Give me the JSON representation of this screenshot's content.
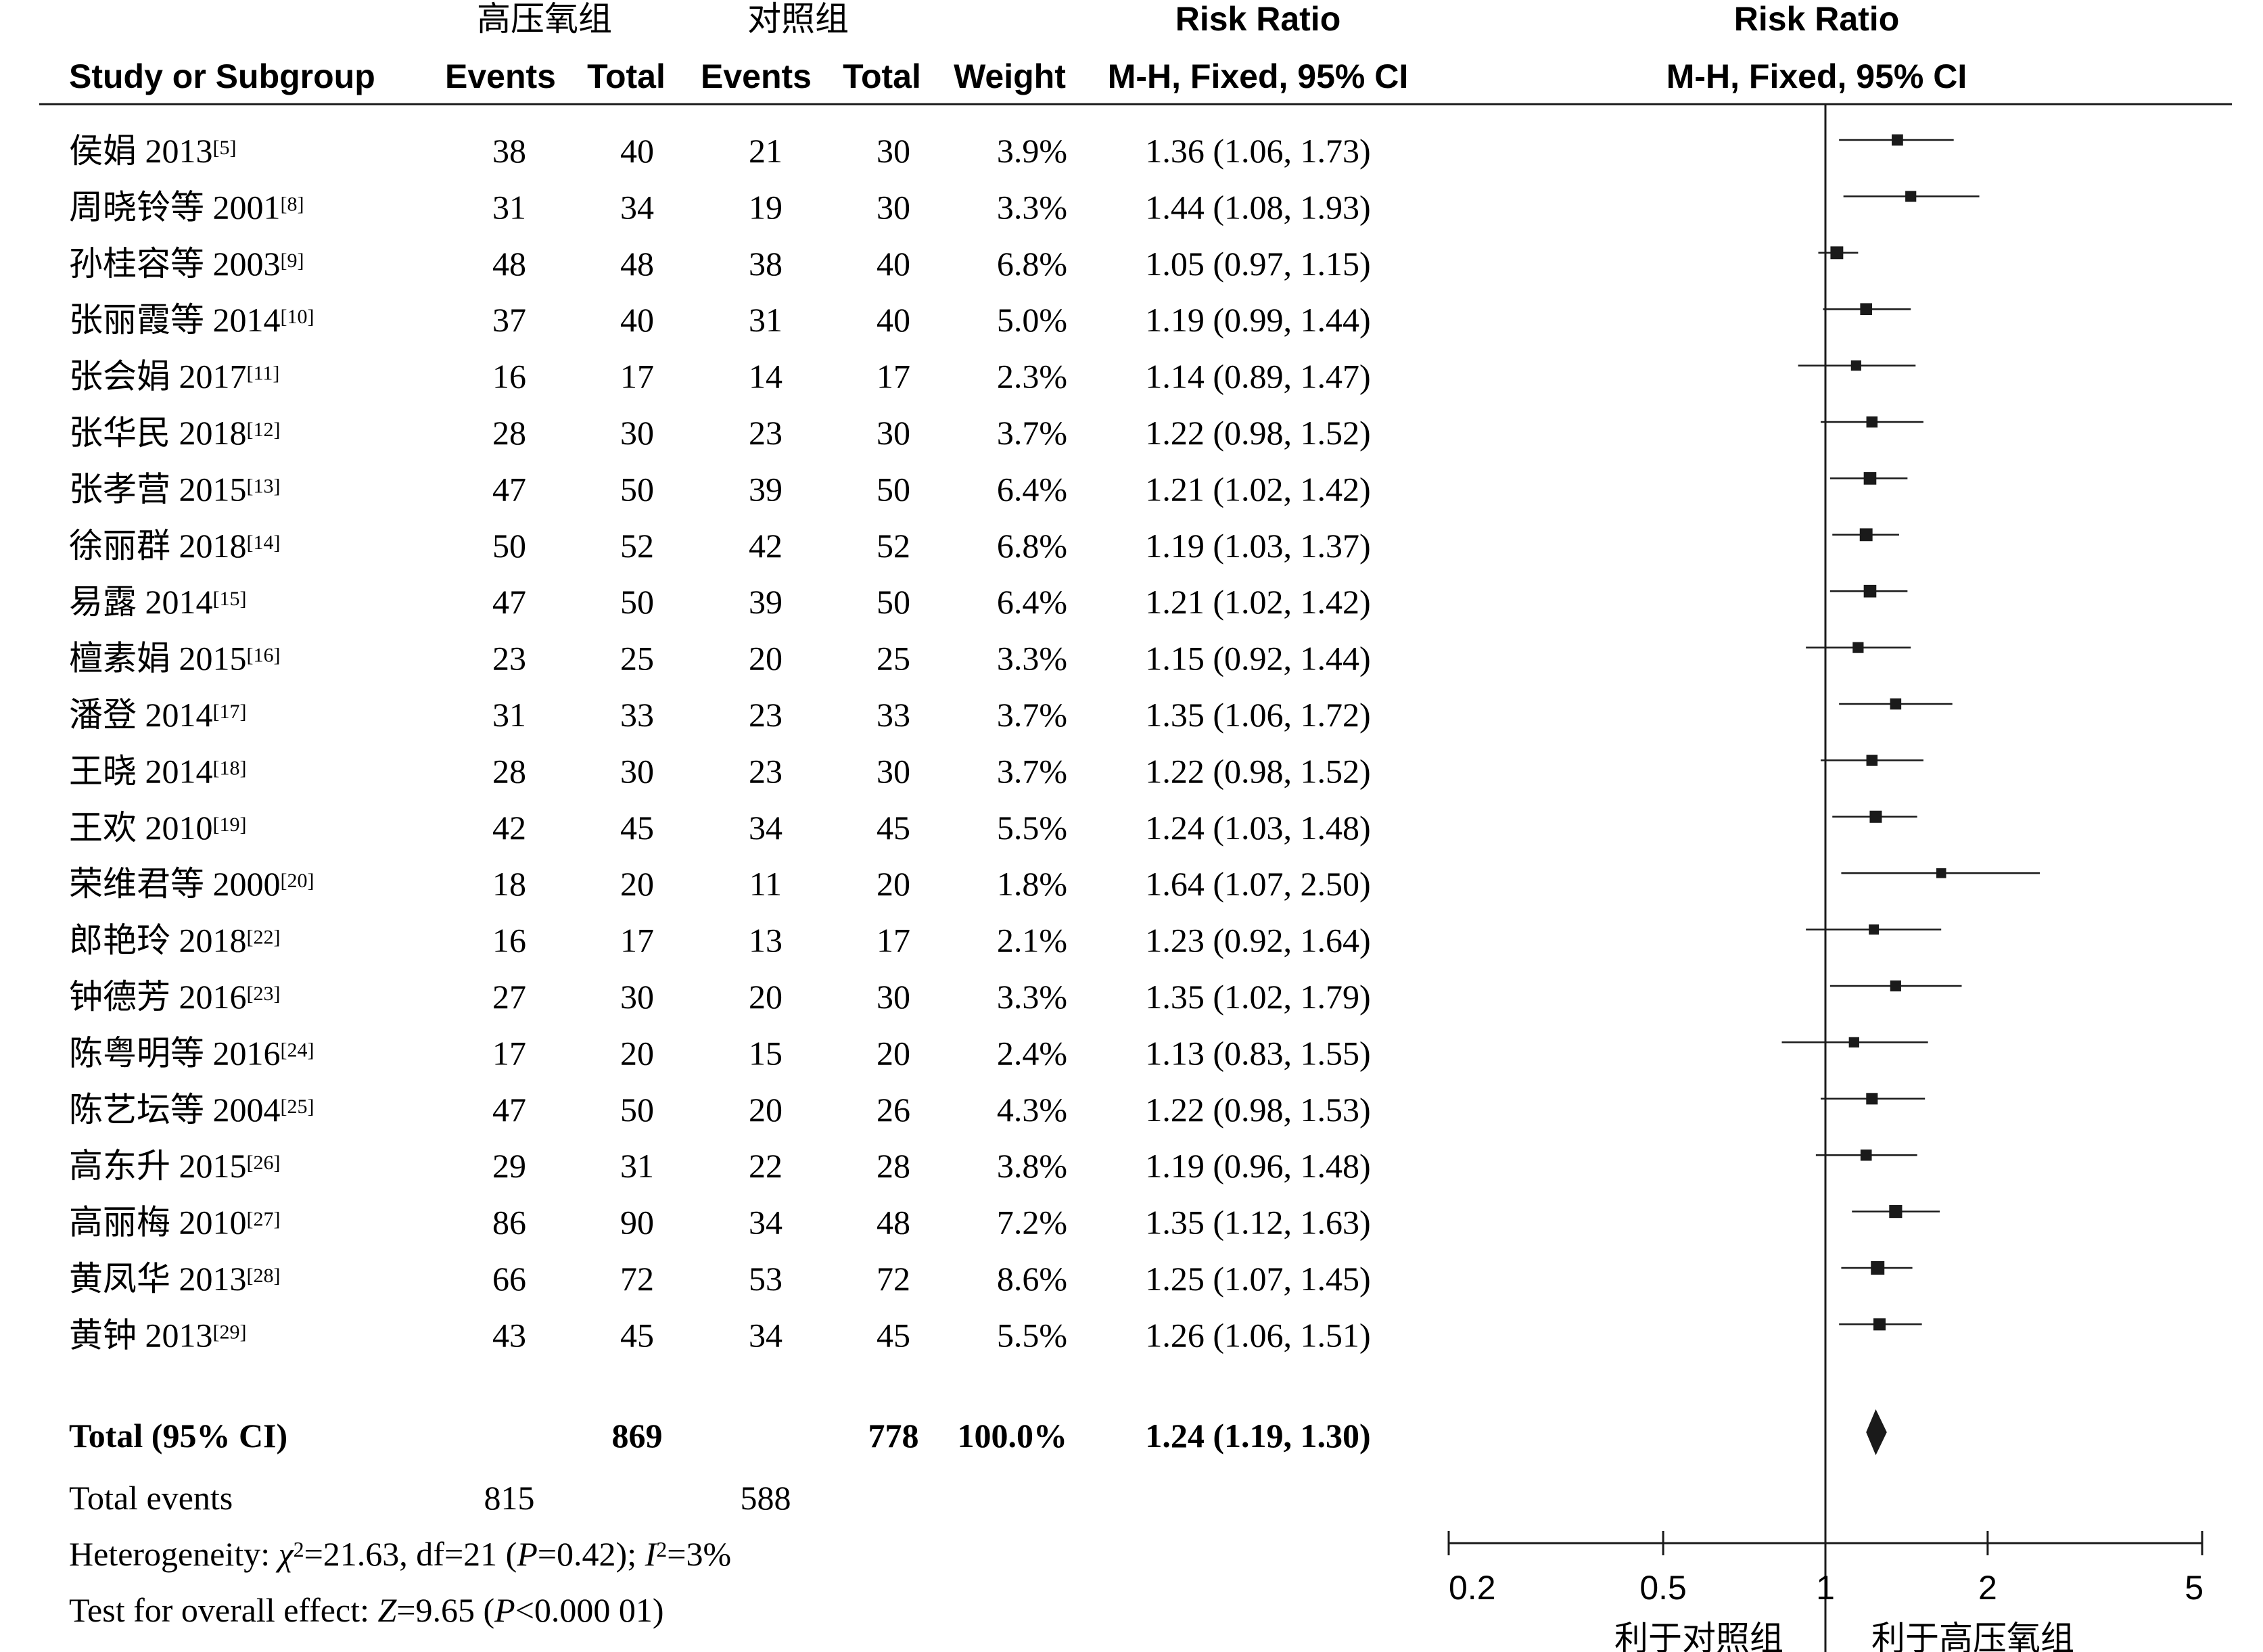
{
  "columns": {
    "study": "Study or Subgroup",
    "group_exp": "高压氧组",
    "group_ctl": "对照组",
    "events": "Events",
    "total": "Total",
    "weight": "Weight",
    "rr_title": "Risk Ratio",
    "rr_method": "M-H, Fixed, 95% CI",
    "plot_title": "Risk Ratio",
    "plot_method": "M-H, Fixed, 95% CI"
  },
  "chart_data": {
    "type": "forest",
    "x_scale": "log",
    "x_ticks": [
      "0.2",
      "0.5",
      "1",
      "2",
      "5"
    ],
    "x_range": [
      0.2,
      5
    ],
    "null_line": 1,
    "favours_left": "利于对照组",
    "favours_right": "利于高压氧组",
    "studies": [
      {
        "name": "侯娟 2013",
        "ref": "[5]",
        "exp_events": 38,
        "exp_total": 40,
        "ctl_events": 21,
        "ctl_total": 30,
        "weight": "3.9%",
        "rr": 1.36,
        "lo": 1.06,
        "hi": 1.73,
        "ci_text": "1.36 (1.06, 1.73)"
      },
      {
        "name": "周晓铃等 2001",
        "ref": "[8]",
        "exp_events": 31,
        "exp_total": 34,
        "ctl_events": 19,
        "ctl_total": 30,
        "weight": "3.3%",
        "rr": 1.44,
        "lo": 1.08,
        "hi": 1.93,
        "ci_text": "1.44 (1.08, 1.93)"
      },
      {
        "name": "孙桂容等 2003",
        "ref": "[9]",
        "exp_events": 48,
        "exp_total": 48,
        "ctl_events": 38,
        "ctl_total": 40,
        "weight": "6.8%",
        "rr": 1.05,
        "lo": 0.97,
        "hi": 1.15,
        "ci_text": "1.05 (0.97, 1.15)"
      },
      {
        "name": "张丽霞等 2014",
        "ref": "[10]",
        "exp_events": 37,
        "exp_total": 40,
        "ctl_events": 31,
        "ctl_total": 40,
        "weight": "5.0%",
        "rr": 1.19,
        "lo": 0.99,
        "hi": 1.44,
        "ci_text": "1.19 (0.99, 1.44)"
      },
      {
        "name": "张会娟 2017",
        "ref": "[11]",
        "exp_events": 16,
        "exp_total": 17,
        "ctl_events": 14,
        "ctl_total": 17,
        "weight": "2.3%",
        "rr": 1.14,
        "lo": 0.89,
        "hi": 1.47,
        "ci_text": "1.14 (0.89, 1.47)"
      },
      {
        "name": "张华民 2018",
        "ref": "[12]",
        "exp_events": 28,
        "exp_total": 30,
        "ctl_events": 23,
        "ctl_total": 30,
        "weight": "3.7%",
        "rr": 1.22,
        "lo": 0.98,
        "hi": 1.52,
        "ci_text": "1.22 (0.98, 1.52)"
      },
      {
        "name": "张孝营 2015",
        "ref": "[13]",
        "exp_events": 47,
        "exp_total": 50,
        "ctl_events": 39,
        "ctl_total": 50,
        "weight": "6.4%",
        "rr": 1.21,
        "lo": 1.02,
        "hi": 1.42,
        "ci_text": "1.21 (1.02, 1.42)"
      },
      {
        "name": "徐丽群 2018",
        "ref": "[14]",
        "exp_events": 50,
        "exp_total": 52,
        "ctl_events": 42,
        "ctl_total": 52,
        "weight": "6.8%",
        "rr": 1.19,
        "lo": 1.03,
        "hi": 1.37,
        "ci_text": "1.19 (1.03, 1.37)"
      },
      {
        "name": "易露 2014",
        "ref": "[15]",
        "exp_events": 47,
        "exp_total": 50,
        "ctl_events": 39,
        "ctl_total": 50,
        "weight": "6.4%",
        "rr": 1.21,
        "lo": 1.02,
        "hi": 1.42,
        "ci_text": "1.21 (1.02, 1.42)"
      },
      {
        "name": "檀素娟 2015",
        "ref": "[16]",
        "exp_events": 23,
        "exp_total": 25,
        "ctl_events": 20,
        "ctl_total": 25,
        "weight": "3.3%",
        "rr": 1.15,
        "lo": 0.92,
        "hi": 1.44,
        "ci_text": "1.15 (0.92, 1.44)"
      },
      {
        "name": "潘登 2014",
        "ref": "[17]",
        "exp_events": 31,
        "exp_total": 33,
        "ctl_events": 23,
        "ctl_total": 33,
        "weight": "3.7%",
        "rr": 1.35,
        "lo": 1.06,
        "hi": 1.72,
        "ci_text": "1.35 (1.06, 1.72)"
      },
      {
        "name": "王晓 2014",
        "ref": "[18]",
        "exp_events": 28,
        "exp_total": 30,
        "ctl_events": 23,
        "ctl_total": 30,
        "weight": "3.7%",
        "rr": 1.22,
        "lo": 0.98,
        "hi": 1.52,
        "ci_text": "1.22 (0.98, 1.52)"
      },
      {
        "name": "王欢 2010",
        "ref": "[19]",
        "exp_events": 42,
        "exp_total": 45,
        "ctl_events": 34,
        "ctl_total": 45,
        "weight": "5.5%",
        "rr": 1.24,
        "lo": 1.03,
        "hi": 1.48,
        "ci_text": "1.24 (1.03, 1.48)"
      },
      {
        "name": "荣维君等 2000",
        "ref": "[20]",
        "exp_events": 18,
        "exp_total": 20,
        "ctl_events": 11,
        "ctl_total": 20,
        "weight": "1.8%",
        "rr": 1.64,
        "lo": 1.07,
        "hi": 2.5,
        "ci_text": "1.64 (1.07, 2.50)"
      },
      {
        "name": "郎艳玲 2018",
        "ref": "[22]",
        "exp_events": 16,
        "exp_total": 17,
        "ctl_events": 13,
        "ctl_total": 17,
        "weight": "2.1%",
        "rr": 1.23,
        "lo": 0.92,
        "hi": 1.64,
        "ci_text": "1.23 (0.92, 1.64)"
      },
      {
        "name": "钟德芳 2016",
        "ref": "[23]",
        "exp_events": 27,
        "exp_total": 30,
        "ctl_events": 20,
        "ctl_total": 30,
        "weight": "3.3%",
        "rr": 1.35,
        "lo": 1.02,
        "hi": 1.79,
        "ci_text": "1.35 (1.02, 1.79)"
      },
      {
        "name": "陈粤明等 2016",
        "ref": "[24]",
        "exp_events": 17,
        "exp_total": 20,
        "ctl_events": 15,
        "ctl_total": 20,
        "weight": "2.4%",
        "rr": 1.13,
        "lo": 0.83,
        "hi": 1.55,
        "ci_text": "1.13 (0.83, 1.55)"
      },
      {
        "name": "陈艺坛等 2004",
        "ref": "[25]",
        "exp_events": 47,
        "exp_total": 50,
        "ctl_events": 20,
        "ctl_total": 26,
        "weight": "4.3%",
        "rr": 1.22,
        "lo": 0.98,
        "hi": 1.53,
        "ci_text": "1.22 (0.98, 1.53)"
      },
      {
        "name": "高东升 2015",
        "ref": "[26]",
        "exp_events": 29,
        "exp_total": 31,
        "ctl_events": 22,
        "ctl_total": 28,
        "weight": "3.8%",
        "rr": 1.19,
        "lo": 0.96,
        "hi": 1.48,
        "ci_text": "1.19 (0.96, 1.48)"
      },
      {
        "name": "高丽梅 2010",
        "ref": "[27]",
        "exp_events": 86,
        "exp_total": 90,
        "ctl_events": 34,
        "ctl_total": 48,
        "weight": "7.2%",
        "rr": 1.35,
        "lo": 1.12,
        "hi": 1.63,
        "ci_text": "1.35 (1.12, 1.63)"
      },
      {
        "name": "黄凤华 2013",
        "ref": "[28]",
        "exp_events": 66,
        "exp_total": 72,
        "ctl_events": 53,
        "ctl_total": 72,
        "weight": "8.6%",
        "rr": 1.25,
        "lo": 1.07,
        "hi": 1.45,
        "ci_text": "1.25 (1.07, 1.45)"
      },
      {
        "name": "黄钟 2013",
        "ref": "[29]",
        "exp_events": 43,
        "exp_total": 45,
        "ctl_events": 34,
        "ctl_total": 45,
        "weight": "5.5%",
        "rr": 1.26,
        "lo": 1.06,
        "hi": 1.51,
        "ci_text": "1.26 (1.06, 1.51)"
      }
    ],
    "total": {
      "label": "Total (95% CI)",
      "exp_total": 869,
      "ctl_total": 778,
      "weight": "100.0%",
      "rr": 1.24,
      "lo": 1.19,
      "hi": 1.3,
      "ci_text": "1.24 (1.19, 1.30)"
    },
    "total_events": {
      "label": "Total events",
      "exp": 815,
      "ctl": 588
    },
    "heterogeneity": {
      "label": "Heterogeneity: ",
      "chi_sym": "χ",
      "chi_value": "=21.63, df=21 (",
      "p_sym": "P",
      "p_value": "=0.42); ",
      "i_sym": "I",
      "i_value": "=3%"
    },
    "overall_effect": {
      "label": "Test for overall effect: ",
      "z_sym": "Z",
      "z_value": "=9.65 (",
      "p_sym": "P",
      "p_value": "<0.000 01)"
    }
  }
}
